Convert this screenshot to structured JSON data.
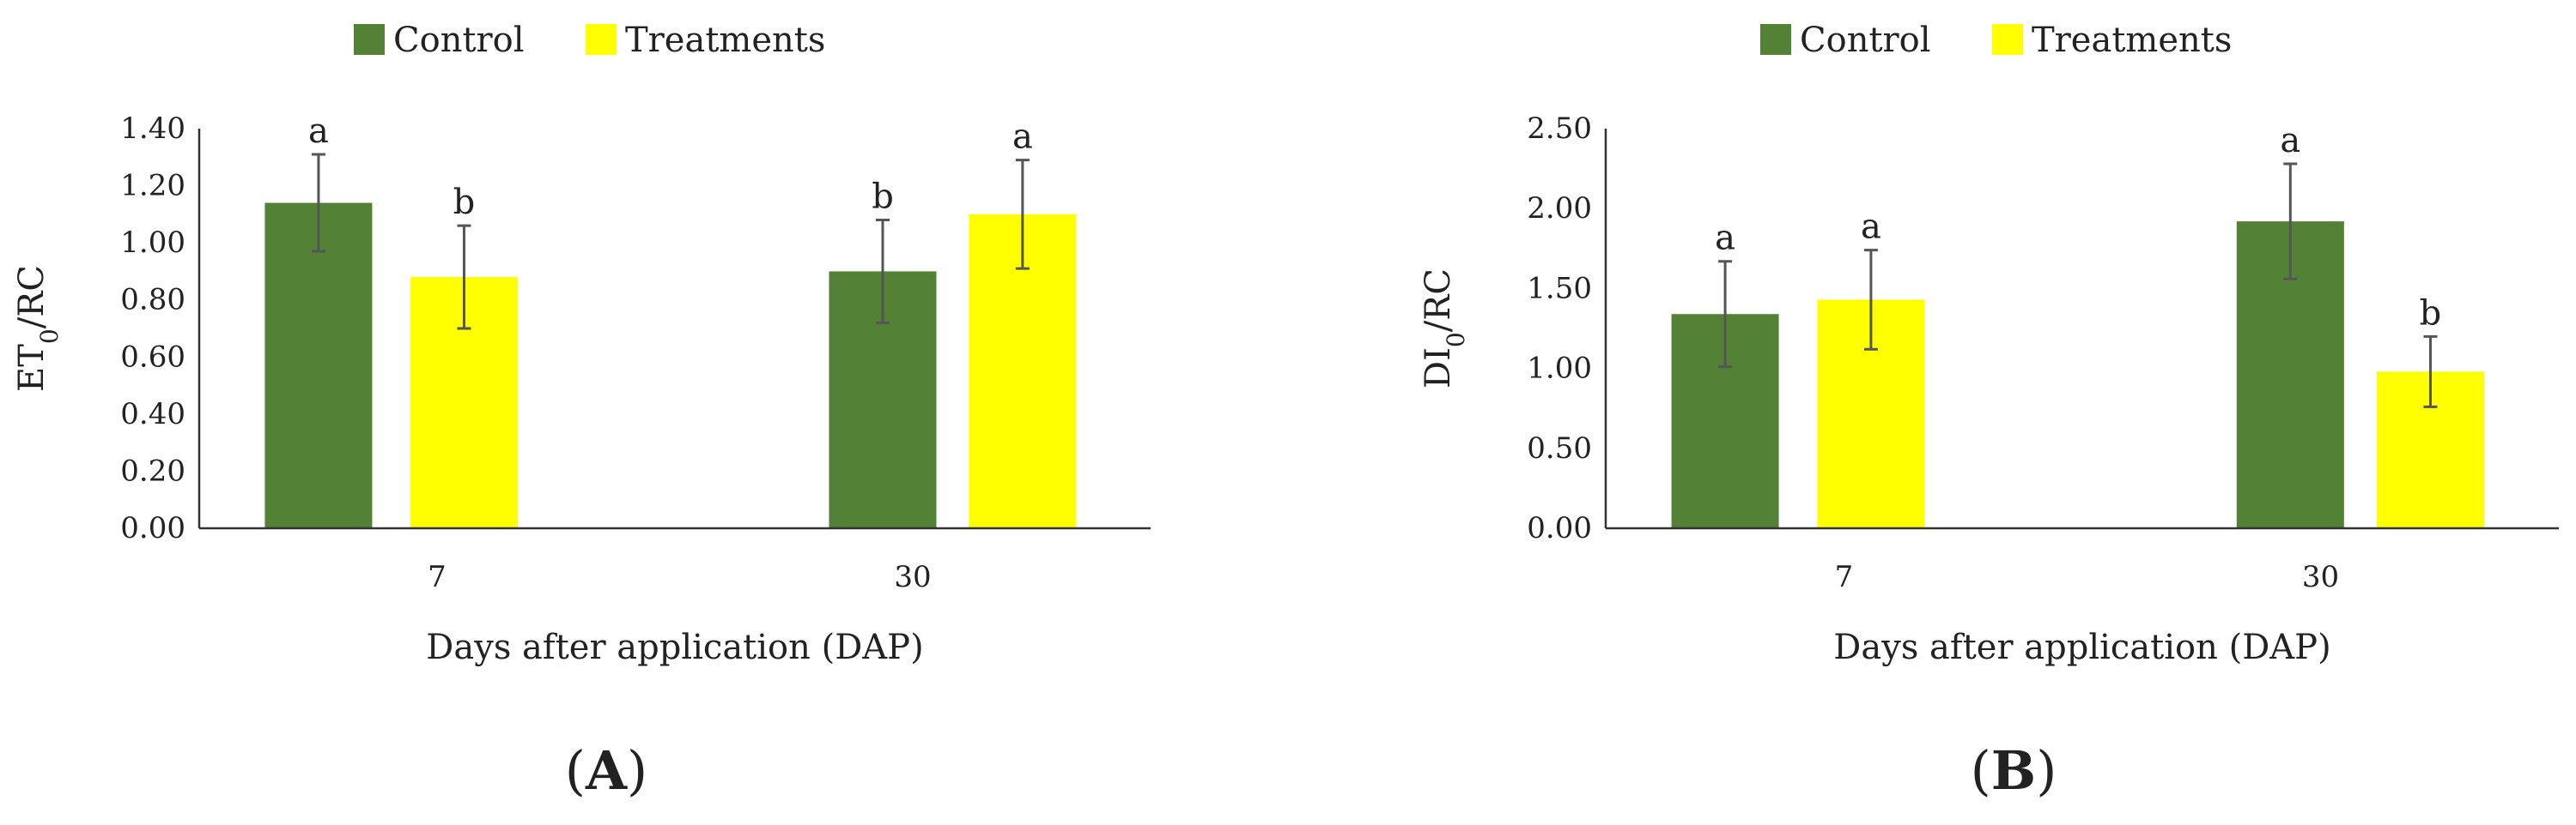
{
  "colors": {
    "control": "#538135",
    "treatments": "#FFFF00"
  },
  "chart_data": [
    {
      "type": "bar",
      "panel": "A",
      "ylabel": {
        "main": "ET",
        "sub": "0",
        "rest": "/RC"
      },
      "xlabel": "Days after application (DAP)",
      "categories": [
        "7",
        "30"
      ],
      "ylim": [
        0,
        1.4
      ],
      "yticks": [
        "0.00",
        "0.20",
        "0.40",
        "0.60",
        "0.80",
        "1.00",
        "1.20",
        "1.40"
      ],
      "legend_position": "top-center",
      "series": [
        {
          "name": "Control",
          "values": [
            1.14,
            0.9
          ],
          "errors": [
            0.17,
            0.18
          ],
          "letters": [
            "a",
            "b"
          ]
        },
        {
          "name": "Treatments",
          "values": [
            0.88,
            1.1
          ],
          "errors": [
            0.18,
            0.19
          ],
          "letters": [
            "b",
            "a"
          ]
        }
      ]
    },
    {
      "type": "bar",
      "panel": "B",
      "ylabel": {
        "main": "DI",
        "sub": "0",
        "rest": "/RC"
      },
      "xlabel": "Days after application (DAP)",
      "categories": [
        "7",
        "30"
      ],
      "ylim": [
        0,
        2.5
      ],
      "yticks": [
        "0.00",
        "0.50",
        "1.00",
        "1.50",
        "2.00",
        "2.50"
      ],
      "legend_position": "top-center",
      "series": [
        {
          "name": "Control",
          "values": [
            1.34,
            1.92
          ],
          "errors": [
            0.33,
            0.36
          ],
          "letters": [
            "a",
            "a"
          ]
        },
        {
          "name": "Treatments",
          "values": [
            1.43,
            0.98
          ],
          "errors": [
            0.31,
            0.22
          ],
          "letters": [
            "a",
            "b"
          ]
        }
      ]
    }
  ]
}
